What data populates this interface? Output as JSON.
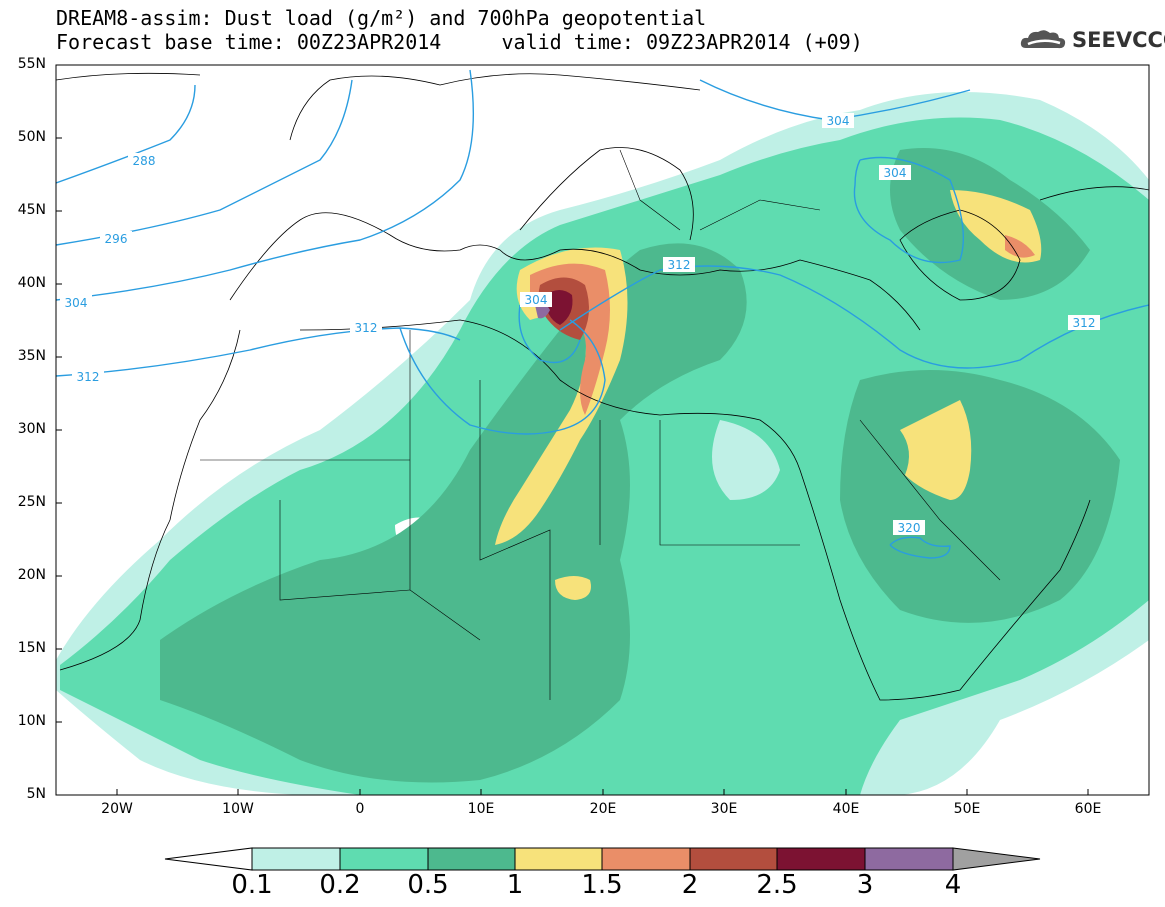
{
  "title": {
    "line1": "DREAM8-assim: Dust load (g/m²) and 700hPa geopotential",
    "line2": "Forecast base time: 00Z23APR2014     valid time: 09Z23APR2014 (+09)"
  },
  "logo": {
    "text": "SEEVCCC",
    "icon": "cloud-icon"
  },
  "axes": {
    "lat_labels": [
      "55N",
      "50N",
      "45N",
      "40N",
      "35N",
      "30N",
      "25N",
      "20N",
      "15N",
      "10N",
      "5N"
    ],
    "lon_labels": [
      "20W",
      "10W",
      "0",
      "10E",
      "20E",
      "30E",
      "40E",
      "50E",
      "60E"
    ]
  },
  "contours": {
    "labels": [
      "288",
      "296",
      "304",
      "312",
      "304",
      "312",
      "304",
      "312",
      "304",
      "312",
      "312",
      "320"
    ]
  },
  "colorbar": {
    "levels": [
      "0.1",
      "0.2",
      "0.5",
      "1",
      "1.5",
      "2",
      "2.5",
      "3",
      "4"
    ],
    "colors": [
      "#bff0e6",
      "#5fdcb0",
      "#4db98e",
      "#f7e27b",
      "#ea8e68",
      "#b34e3e",
      "#7c1232",
      "#8e6aa0",
      "#a0a0a0"
    ]
  },
  "dust_colors": {
    "low": "#bff0e6",
    "mid": "#5fdcb0",
    "high": "#4db98e",
    "yellow": "#f7e27b",
    "orange": "#ea8e68",
    "brown": "#b34e3e",
    "maroon": "#7c1232",
    "purple": "#8e6aa0"
  },
  "contour_color": "#2a9de0"
}
